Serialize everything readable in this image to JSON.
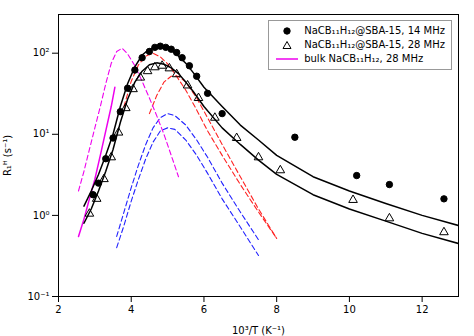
{
  "chart_data": {
    "type": "line",
    "xlabel": "10³/T (K⁻¹)",
    "ylabel": "R₁ᴴ (s⁻¹)",
    "xlim": [
      2,
      13
    ],
    "ylim": [
      0.1,
      300
    ],
    "xticks": [
      2,
      4,
      6,
      8,
      10,
      12
    ],
    "yticks": [
      {
        "value": 0.1,
        "label": "10⁻¹"
      },
      {
        "value": 1,
        "label": "10⁰"
      },
      {
        "value": 10,
        "label": "10¹"
      },
      {
        "value": 100,
        "label": "10²"
      }
    ],
    "log": "y",
    "grid": false,
    "legend": "upper right",
    "series": [
      {
        "type": "line",
        "line_style": "dashed",
        "color": "#2222FF",
        "x": [
          3.6,
          3.8,
          4.0,
          4.2,
          4.4,
          4.6,
          4.8,
          5.0,
          5.2,
          5.5,
          5.8,
          6.1,
          6.5,
          7.0,
          7.5
        ],
        "values": [
          0.55,
          1.1,
          2.2,
          4.2,
          7.5,
          12,
          16,
          18,
          17,
          13,
          8.5,
          5.2,
          2.5,
          1.1,
          0.5
        ]
      },
      {
        "type": "line",
        "line_style": "dashed",
        "color": "#2222FF",
        "x": [
          3.6,
          3.8,
          4.0,
          4.2,
          4.4,
          4.6,
          4.8,
          5.0,
          5.2,
          5.5,
          5.8,
          6.1,
          6.5,
          7.0,
          7.5
        ],
        "values": [
          0.4,
          0.75,
          1.5,
          2.8,
          5.0,
          8.0,
          11,
          12,
          11.5,
          8.5,
          5.5,
          3.3,
          1.6,
          0.72,
          0.32
        ]
      },
      {
        "type": "line",
        "line_style": "dashed",
        "color": "#FF2222",
        "x": [
          3.8,
          4.0,
          4.2,
          4.4,
          4.6,
          4.8,
          5.0,
          5.2,
          5.5,
          5.8,
          6.1,
          6.5,
          7.0,
          7.5,
          8.0
        ],
        "values": [
          22,
          45,
          72,
          92,
          100,
          90,
          74,
          56,
          35,
          20,
          11,
          5.5,
          2.4,
          1.1,
          0.52
        ]
      },
      {
        "type": "line",
        "line_style": "dashed",
        "color": "#FF2222",
        "x": [
          4.5,
          4.7,
          4.9,
          5.1,
          5.3,
          5.5,
          5.8,
          6.1,
          6.5,
          7.0,
          7.5,
          8.0
        ],
        "values": [
          18,
          30,
          44,
          52,
          52,
          44,
          28,
          16,
          7.5,
          3.0,
          1.2,
          0.52
        ]
      },
      {
        "type": "line",
        "line_style": "dashed",
        "color": "#EE00EE",
        "x": [
          2.55,
          2.7,
          2.85,
          3.0,
          3.15,
          3.3,
          3.45,
          3.6,
          3.75,
          3.9,
          4.1,
          4.3,
          4.5,
          4.7,
          4.9,
          5.1,
          5.3
        ],
        "values": [
          2.0,
          3.5,
          6.5,
          12,
          22,
          42,
          75,
          105,
          115,
          98,
          70,
          45,
          28,
          17,
          10,
          5.5,
          3.0
        ]
      },
      {
        "type": "line",
        "line_style": "solid",
        "color": "#EE00EE",
        "name": "bulk NaCB₁₁H₁₂, 28 MHz",
        "x": [
          2.55,
          2.7,
          2.85,
          3.0,
          3.15,
          3.3,
          3.45,
          3.55
        ],
        "values": [
          0.55,
          0.9,
          1.6,
          2.8,
          5.5,
          11,
          22,
          38
        ]
      },
      {
        "type": "line",
        "line_style": "solid",
        "color": "#000000",
        "x": [
          2.7,
          2.9,
          3.1,
          3.3,
          3.5,
          3.7,
          3.9,
          4.1,
          4.3,
          4.5,
          4.7,
          4.9,
          5.1,
          5.3,
          5.5,
          5.7,
          6.0,
          6.5,
          7.0,
          7.5,
          8.0,
          9.0,
          10.0,
          11.0,
          12.0,
          13.0
        ],
        "values": [
          1.3,
          2.0,
          3.2,
          5.5,
          10,
          22,
          42,
          68,
          95,
          112,
          120,
          118,
          108,
          92,
          75,
          58,
          38,
          22,
          13,
          8.5,
          5.5,
          3.0,
          2.0,
          1.4,
          1.0,
          0.75
        ]
      },
      {
        "type": "line",
        "line_style": "solid",
        "color": "#000000",
        "x": [
          2.7,
          2.9,
          3.1,
          3.3,
          3.5,
          3.7,
          3.9,
          4.1,
          4.3,
          4.5,
          4.7,
          4.9,
          5.1,
          5.3,
          5.5,
          5.7,
          6.0,
          6.5,
          7.0,
          7.5,
          8.0,
          9.0,
          10.0,
          11.0,
          12.0,
          13.0
        ],
        "values": [
          0.8,
          1.2,
          2.0,
          3.5,
          6.5,
          14,
          27,
          44,
          60,
          72,
          76,
          73,
          66,
          56,
          44,
          34,
          22,
          12,
          7.5,
          4.8,
          3.2,
          1.8,
          1.2,
          0.85,
          0.6,
          0.45
        ]
      },
      {
        "type": "scatter",
        "marker": "circle",
        "color": "#000000",
        "name": "NaCB₁₁H₁₂@SBA-15, 14 MHz",
        "x": [
          2.95,
          3.1,
          3.3,
          3.5,
          3.7,
          3.9,
          4.1,
          4.3,
          4.5,
          4.65,
          4.8,
          4.95,
          5.1,
          5.25,
          5.4,
          5.6,
          5.8,
          6.1,
          6.5,
          8.5,
          10.2,
          11.1,
          12.6
        ],
        "values": [
          1.8,
          2.5,
          5.0,
          9.0,
          19,
          37,
          62,
          88,
          105,
          118,
          122,
          118,
          112,
          102,
          88,
          70,
          52,
          32,
          18,
          9.2,
          3.1,
          2.4,
          1.6
        ]
      },
      {
        "type": "scatter",
        "marker": "triangle-open",
        "color": "#000000",
        "name": "NaCB₁₁H₁₂@SBA-15, 28 MHz",
        "x": [
          2.85,
          3.05,
          3.25,
          3.45,
          3.65,
          3.85,
          4.05,
          4.25,
          4.45,
          4.65,
          4.85,
          5.05,
          5.25,
          5.55,
          5.85,
          6.3,
          6.9,
          7.5,
          8.1,
          10.1,
          11.1,
          12.6
        ],
        "values": [
          1.05,
          1.6,
          2.8,
          5.2,
          10.5,
          21,
          36,
          50,
          60,
          67,
          70,
          65,
          55,
          40,
          28,
          16,
          9.0,
          5.2,
          3.6,
          1.55,
          0.92,
          0.62
        ]
      }
    ]
  }
}
